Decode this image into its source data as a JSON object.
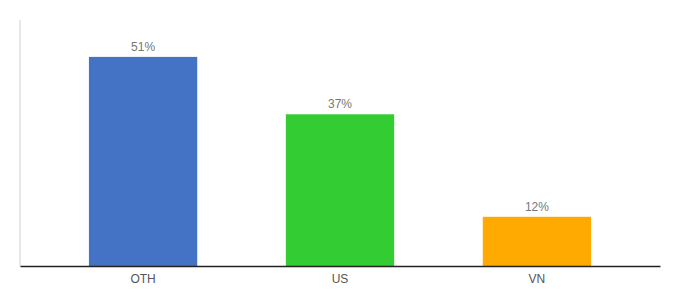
{
  "chart_data": {
    "type": "bar",
    "categories": [
      "OTH",
      "US",
      "VN"
    ],
    "values": [
      51,
      37,
      12
    ],
    "value_labels": [
      "51%",
      "37%",
      "12%"
    ],
    "colors": [
      "#4472C4",
      "#33CC33",
      "#FFAA00"
    ],
    "ylim": [
      0,
      60
    ],
    "data_labels": true,
    "tick_labels": "x",
    "grid": false
  }
}
